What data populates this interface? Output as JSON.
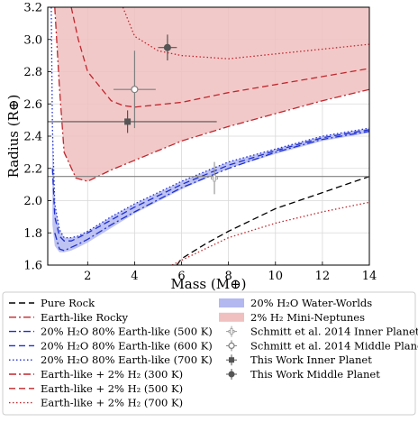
{
  "chart_data": {
    "type": "line",
    "xlabel": "Mass (M⊕)",
    "ylabel": "Radius (R⊕)",
    "xlim": [
      0.3,
      14
    ],
    "ylim": [
      1.6,
      3.2
    ],
    "grid": true,
    "legend_placement": "bottom (below plot, two columns)",
    "x_ticks": [
      {
        "value": 2,
        "label": "2"
      },
      {
        "value": 4,
        "label": "4"
      },
      {
        "value": 6,
        "label": "6"
      },
      {
        "value": 8,
        "label": "8"
      },
      {
        "value": 10,
        "label": "10"
      },
      {
        "value": 12,
        "label": "12"
      },
      {
        "value": 14,
        "label": "14"
      }
    ],
    "y_ticks": [
      {
        "value": 1.6,
        "label": "1.6"
      },
      {
        "value": 1.8,
        "label": "1.8"
      },
      {
        "value": 2.0,
        "label": "2.0"
      },
      {
        "value": 2.2,
        "label": "2.2"
      },
      {
        "value": 2.4,
        "label": "2.4"
      },
      {
        "value": 2.6,
        "label": "2.6"
      },
      {
        "value": 2.8,
        "label": "2.8"
      },
      {
        "value": 3.0,
        "label": "3.0"
      },
      {
        "value": 3.2,
        "label": "3.2"
      }
    ],
    "reference_line": {
      "y": 2.15,
      "color": "#7f7f7f"
    },
    "bands": [
      {
        "name": "20% H2O Water-Worlds",
        "color": "#b3b8f0",
        "x": [
          0.5,
          0.6,
          0.8,
          1.0,
          1.3,
          1.6,
          2,
          3,
          4,
          6,
          8,
          10,
          12,
          14
        ],
        "lower": [
          1.85,
          1.72,
          1.68,
          1.68,
          1.69,
          1.71,
          1.74,
          1.83,
          1.92,
          2.07,
          2.2,
          2.29,
          2.37,
          2.42
        ],
        "upper": [
          2.45,
          1.98,
          1.82,
          1.77,
          1.77,
          1.78,
          1.81,
          1.9,
          1.98,
          2.12,
          2.24,
          2.32,
          2.4,
          2.45
        ]
      },
      {
        "name": "2% H2 Mini-Neptunes",
        "color": "#f0c0c0",
        "x": [
          0.6,
          0.8,
          1.0,
          1.5,
          2.0,
          3.0,
          4.0,
          6.0,
          8.0,
          10.0,
          12.0,
          14.0
        ],
        "lower": [
          3.2,
          2.7,
          2.3,
          2.14,
          2.12,
          2.19,
          2.25,
          2.37,
          2.46,
          2.54,
          2.62,
          2.69
        ],
        "upper": [
          3.2,
          3.2,
          3.2,
          3.2,
          3.2,
          3.2,
          3.2,
          3.2,
          3.2,
          3.2,
          3.2,
          3.2
        ]
      }
    ],
    "series": [
      {
        "name": "Pure Rock",
        "color": "#000000",
        "style": "dashed",
        "x": [
          5.8,
          6,
          7,
          8,
          9,
          10,
          11,
          12,
          13,
          14
        ],
        "y": [
          1.6,
          1.64,
          1.73,
          1.81,
          1.88,
          1.95,
          2.0,
          2.05,
          2.1,
          2.15
        ]
      },
      {
        "name": "Earth-like Rocky",
        "color": "#c0272d",
        "style": "dashdot",
        "x": [],
        "y": []
      },
      {
        "name": "20% H2O 80% Earth-like (500 K)",
        "color": "#1f2fd1",
        "style": "dashdot",
        "x": [
          0.6,
          0.8,
          1.0,
          1.3,
          1.6,
          2,
          3,
          4,
          6,
          8,
          10,
          12,
          14
        ],
        "y": [
          1.8,
          1.7,
          1.69,
          1.71,
          1.73,
          1.76,
          1.85,
          1.93,
          2.08,
          2.2,
          2.3,
          2.38,
          2.43
        ]
      },
      {
        "name": "20% H2O 80% Earth-like (600 K)",
        "color": "#1f2fd1",
        "style": "dashed",
        "x": [
          0.5,
          0.6,
          0.8,
          1.0,
          1.3,
          1.6,
          2,
          3,
          4,
          6,
          8,
          10,
          12,
          14
        ],
        "y": [
          2.2,
          1.9,
          1.78,
          1.75,
          1.75,
          1.77,
          1.8,
          1.88,
          1.96,
          2.1,
          2.22,
          2.31,
          2.39,
          2.44
        ]
      },
      {
        "name": "20% H2O 80% Earth-like (700 K)",
        "color": "#1f2fd1",
        "style": "dotted",
        "x": [
          0.45,
          0.5,
          0.6,
          0.8,
          1.0,
          1.3,
          1.6,
          2,
          3,
          4,
          6,
          8,
          10,
          12,
          14
        ],
        "y": [
          3.2,
          2.45,
          1.98,
          1.82,
          1.77,
          1.77,
          1.78,
          1.81,
          1.9,
          1.98,
          2.12,
          2.24,
          2.32,
          2.4,
          2.45
        ]
      },
      {
        "name": "Earth-like + 2% H2 (300 K)",
        "color": "#c0272d",
        "style": "dashdot",
        "x": [
          0.6,
          0.8,
          1.0,
          1.5,
          2.0,
          3.0,
          4.0,
          6.0,
          8.0,
          10.0,
          12.0,
          14.0
        ],
        "y": [
          3.2,
          2.7,
          2.3,
          2.14,
          2.12,
          2.19,
          2.25,
          2.37,
          2.46,
          2.54,
          2.62,
          2.69
        ]
      },
      {
        "name": "Earth-like + 2% H2 (500 K)",
        "color": "#c0272d",
        "style": "dashed",
        "x": [
          1.3,
          1.6,
          2.0,
          3.0,
          3.5,
          4.0,
          6.0,
          8.0,
          10.0,
          12.0,
          14.0
        ],
        "y": [
          3.2,
          3.0,
          2.8,
          2.62,
          2.59,
          2.58,
          2.61,
          2.67,
          2.72,
          2.77,
          2.82
        ]
      },
      {
        "name": "Earth-like + 2% H2 (700 K)",
        "color": "#c0272d",
        "style": "dotted",
        "x": [
          3.5,
          4.0,
          5.0,
          6.0,
          8.0,
          10.0,
          12.0,
          14.0
        ],
        "y": [
          3.2,
          3.02,
          2.93,
          2.9,
          2.88,
          2.91,
          2.94,
          2.97
        ]
      },
      {
        "name": "Earth-like + 2% H2 (700 K) lower",
        "color": "#c0272d",
        "style": "dotted",
        "x": [
          5.6,
          6,
          8,
          10,
          12,
          14
        ],
        "y": [
          1.6,
          1.63,
          1.77,
          1.86,
          1.93,
          1.99
        ]
      }
    ],
    "points": [
      {
        "name": "Schmitt et al. 2014 Inner Planet",
        "marker": "plus-open",
        "color": "#9a9a9a",
        "x": 7.4,
        "y": 2.14,
        "xerr": 0.15,
        "yerr": 0.1
      },
      {
        "name": "Schmitt et al. 2014 Middle Planet",
        "marker": "circle-open",
        "color": "#7f7f7f",
        "x": 4.0,
        "y": 2.69,
        "xerr": 0.9,
        "yerr": 0.24
      },
      {
        "name": "This Work Inner Planet",
        "marker": "square",
        "color": "#555555",
        "x": 3.7,
        "y": 2.49,
        "xerr": 3.8,
        "yerr": 0.07
      },
      {
        "name": "This Work Middle Planet",
        "marker": "circle",
        "color": "#555555",
        "x": 5.4,
        "y": 2.95,
        "xerr": 0.4,
        "yerr": 0.08
      }
    ],
    "legend": [
      {
        "label": "Pure Rock",
        "kind": "line",
        "color": "#000000",
        "style": "dashed"
      },
      {
        "label": "Earth-like Rocky",
        "kind": "line",
        "color": "#c0272d",
        "style": "dashdot"
      },
      {
        "label": "20% H₂O 80% Earth-like (500 K)",
        "kind": "line",
        "color": "#1f2fd1",
        "style": "dashdot"
      },
      {
        "label": "20% H₂O 80% Earth-like (600 K)",
        "kind": "line",
        "color": "#1f2fd1",
        "style": "dashed"
      },
      {
        "label": "20% H₂O 80% Earth-like (700 K)",
        "kind": "line",
        "color": "#1f2fd1",
        "style": "dotted"
      },
      {
        "label": "Earth-like + 2% H₂ (300 K)",
        "kind": "line",
        "color": "#c0272d",
        "style": "dashdot"
      },
      {
        "label": "Earth-like + 2% H₂ (500 K)",
        "kind": "line",
        "color": "#c0272d",
        "style": "dashed"
      },
      {
        "label": "Earth-like + 2% H₂ (700 K)",
        "kind": "line",
        "color": "#c0272d",
        "style": "dotted"
      },
      {
        "label": "20% H₂O Water-Worlds",
        "kind": "patch",
        "color": "#b3b8f0"
      },
      {
        "label": "2% H₂ Mini-Neptunes",
        "kind": "patch",
        "color": "#f0c0c0"
      },
      {
        "label": "Schmitt et al. 2014 Inner Planet",
        "kind": "plus-open",
        "color": "#9a9a9a"
      },
      {
        "label": "Schmitt et al. 2014 Middle Planet",
        "kind": "circle-open",
        "color": "#7f7f7f"
      },
      {
        "label": "This Work Inner Planet",
        "kind": "square",
        "color": "#555555"
      },
      {
        "label": "This Work Middle Planet",
        "kind": "circle",
        "color": "#555555"
      }
    ]
  }
}
